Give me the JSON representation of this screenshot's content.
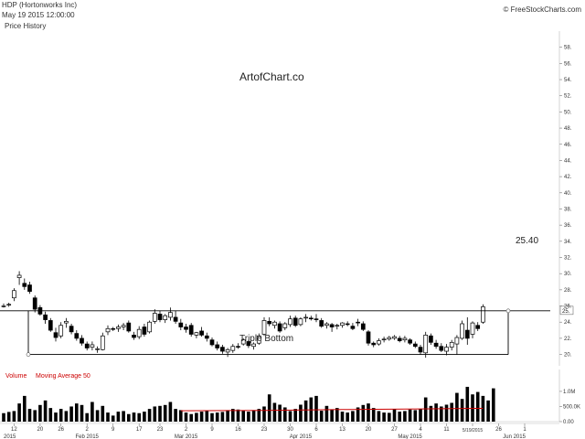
{
  "header": {
    "symbol": "HDP (Hortonworks Inc)",
    "datetime": "May 19 2015 12:00:00",
    "brand": "© FreeStockCharts.com",
    "panel_title": "Price History"
  },
  "chart_data": {
    "type": "candlestick",
    "watermark": "ArtofChart.co",
    "pattern_label": "Triple Bottom",
    "resistance_label": "25.40",
    "current_price_tag": "25.",
    "resistance": 25.4,
    "support": 20.0,
    "ylim": [
      19.5,
      60
    ],
    "y_ticks": [
      "58.",
      "56.",
      "54.",
      "52.",
      "50.",
      "48.",
      "46.",
      "44.",
      "42.",
      "40.",
      "38.",
      "36.",
      "34.",
      "32.",
      "30.",
      "28.",
      "26.",
      "24.",
      "22.",
      "20."
    ],
    "y_tick_values": [
      58,
      56,
      54,
      52,
      50,
      48,
      46,
      44,
      42,
      40,
      38,
      36,
      34,
      32,
      30,
      28,
      26,
      24,
      22,
      20
    ],
    "x_tick_labels": [
      {
        "label": "12",
        "i": 2
      },
      {
        "label": "20",
        "i": 7
      },
      {
        "label": "26",
        "i": 11
      },
      {
        "label": "2",
        "i": 16
      },
      {
        "label": "9",
        "i": 21
      },
      {
        "label": "17",
        "i": 26
      },
      {
        "label": "23",
        "i": 30
      },
      {
        "label": "2",
        "i": 35
      },
      {
        "label": "9",
        "i": 40
      },
      {
        "label": "16",
        "i": 45
      },
      {
        "label": "23",
        "i": 50
      },
      {
        "label": "30",
        "i": 55
      },
      {
        "label": "6",
        "i": 60
      },
      {
        "label": "13",
        "i": 65
      },
      {
        "label": "20",
        "i": 70
      },
      {
        "label": "27",
        "i": 75
      },
      {
        "label": "4",
        "i": 80
      },
      {
        "label": "11",
        "i": 85
      },
      {
        "label": "5/19/2015",
        "i": 90
      },
      {
        "label": "26",
        "i": 95
      },
      {
        "label": "1",
        "i": 100
      }
    ],
    "x_month_labels": [
      {
        "label": "2015",
        "i": 0
      },
      {
        "label": "Feb 2015",
        "i": 16
      },
      {
        "label": "Mar 2015",
        "i": 35
      },
      {
        "label": "Apr 2015",
        "i": 57
      },
      {
        "label": "May 2015",
        "i": 78
      },
      {
        "label": "Jun 2015",
        "i": 98
      }
    ],
    "candles": [
      {
        "o": 26.0,
        "h": 26.3,
        "l": 25.8,
        "c": 26.0
      },
      {
        "o": 26.1,
        "h": 26.4,
        "l": 25.9,
        "c": 26.2
      },
      {
        "o": 27.0,
        "h": 28.2,
        "l": 26.6,
        "c": 27.9
      },
      {
        "o": 29.5,
        "h": 30.3,
        "l": 28.6,
        "c": 29.8
      },
      {
        "o": 28.8,
        "h": 29.4,
        "l": 28.0,
        "c": 28.4
      },
      {
        "o": 28.6,
        "h": 29.0,
        "l": 27.5,
        "c": 27.8
      },
      {
        "o": 27.0,
        "h": 27.3,
        "l": 25.2,
        "c": 25.6
      },
      {
        "o": 25.8,
        "h": 26.1,
        "l": 24.8,
        "c": 25.0
      },
      {
        "o": 24.9,
        "h": 25.3,
        "l": 23.8,
        "c": 24.3
      },
      {
        "o": 24.2,
        "h": 24.5,
        "l": 22.8,
        "c": 23.0
      },
      {
        "o": 22.7,
        "h": 23.3,
        "l": 21.6,
        "c": 22.1
      },
      {
        "o": 22.3,
        "h": 24.0,
        "l": 22.0,
        "c": 23.6
      },
      {
        "o": 23.9,
        "h": 24.5,
        "l": 23.3,
        "c": 24.1
      },
      {
        "o": 23.5,
        "h": 23.8,
        "l": 22.5,
        "c": 22.8
      },
      {
        "o": 22.6,
        "h": 23.0,
        "l": 21.7,
        "c": 22.0
      },
      {
        "o": 22.0,
        "h": 22.4,
        "l": 21.1,
        "c": 21.4
      },
      {
        "o": 21.3,
        "h": 21.6,
        "l": 20.5,
        "c": 20.8
      },
      {
        "o": 20.9,
        "h": 21.6,
        "l": 20.5,
        "c": 21.2
      },
      {
        "o": 20.6,
        "h": 21.0,
        "l": 20.2,
        "c": 20.7
      },
      {
        "o": 20.6,
        "h": 22.7,
        "l": 20.5,
        "c": 22.3
      },
      {
        "o": 22.8,
        "h": 23.6,
        "l": 22.4,
        "c": 23.2
      },
      {
        "o": 23.2,
        "h": 23.4,
        "l": 22.9,
        "c": 23.1
      },
      {
        "o": 23.2,
        "h": 23.7,
        "l": 22.8,
        "c": 23.4
      },
      {
        "o": 23.4,
        "h": 23.9,
        "l": 23.0,
        "c": 23.6
      },
      {
        "o": 23.9,
        "h": 24.2,
        "l": 22.7,
        "c": 22.9
      },
      {
        "o": 22.4,
        "h": 22.8,
        "l": 21.8,
        "c": 22.1
      },
      {
        "o": 22.2,
        "h": 23.5,
        "l": 21.9,
        "c": 23.1
      },
      {
        "o": 23.4,
        "h": 23.8,
        "l": 22.2,
        "c": 22.5
      },
      {
        "o": 22.8,
        "h": 24.2,
        "l": 22.6,
        "c": 24.0
      },
      {
        "o": 24.1,
        "h": 25.6,
        "l": 23.8,
        "c": 25.1
      },
      {
        "o": 25.0,
        "h": 25.4,
        "l": 24.0,
        "c": 24.3
      },
      {
        "o": 24.3,
        "h": 25.0,
        "l": 23.9,
        "c": 24.8
      },
      {
        "o": 24.6,
        "h": 25.8,
        "l": 24.2,
        "c": 25.2
      },
      {
        "o": 24.6,
        "h": 25.4,
        "l": 23.8,
        "c": 24.1
      },
      {
        "o": 23.9,
        "h": 24.4,
        "l": 23.0,
        "c": 23.4
      },
      {
        "o": 23.4,
        "h": 23.8,
        "l": 22.7,
        "c": 23.1
      },
      {
        "o": 23.6,
        "h": 23.9,
        "l": 22.2,
        "c": 22.5
      },
      {
        "o": 22.4,
        "h": 22.8,
        "l": 22.0,
        "c": 22.7
      },
      {
        "o": 22.9,
        "h": 23.4,
        "l": 22.2,
        "c": 22.4
      },
      {
        "o": 22.3,
        "h": 22.7,
        "l": 21.6,
        "c": 22.0
      },
      {
        "o": 21.8,
        "h": 22.1,
        "l": 21.0,
        "c": 21.2
      },
      {
        "o": 21.2,
        "h": 21.6,
        "l": 20.5,
        "c": 20.8
      },
      {
        "o": 20.9,
        "h": 21.2,
        "l": 20.1,
        "c": 20.4
      },
      {
        "o": 20.3,
        "h": 20.8,
        "l": 19.7,
        "c": 20.6
      },
      {
        "o": 20.5,
        "h": 21.3,
        "l": 20.2,
        "c": 21.0
      },
      {
        "o": 21.0,
        "h": 21.4,
        "l": 20.7,
        "c": 20.9
      },
      {
        "o": 21.3,
        "h": 22.0,
        "l": 21.1,
        "c": 21.8
      },
      {
        "o": 21.6,
        "h": 21.8,
        "l": 20.8,
        "c": 21.1
      },
      {
        "o": 21.0,
        "h": 21.5,
        "l": 20.6,
        "c": 21.3
      },
      {
        "o": 21.4,
        "h": 22.6,
        "l": 21.2,
        "c": 22.3
      },
      {
        "o": 22.5,
        "h": 24.6,
        "l": 22.3,
        "c": 24.2
      },
      {
        "o": 24.1,
        "h": 24.6,
        "l": 23.5,
        "c": 23.8
      },
      {
        "o": 23.6,
        "h": 24.2,
        "l": 23.2,
        "c": 24.0
      },
      {
        "o": 23.8,
        "h": 24.1,
        "l": 22.7,
        "c": 22.9
      },
      {
        "o": 23.3,
        "h": 24.0,
        "l": 23.0,
        "c": 23.8
      },
      {
        "o": 23.7,
        "h": 24.8,
        "l": 23.4,
        "c": 24.4
      },
      {
        "o": 24.5,
        "h": 24.8,
        "l": 23.4,
        "c": 23.6
      },
      {
        "o": 23.7,
        "h": 24.6,
        "l": 23.5,
        "c": 24.4
      },
      {
        "o": 24.5,
        "h": 25.0,
        "l": 24.0,
        "c": 24.6
      },
      {
        "o": 24.5,
        "h": 24.8,
        "l": 24.2,
        "c": 24.4
      },
      {
        "o": 24.4,
        "h": 25.0,
        "l": 24.0,
        "c": 24.3
      },
      {
        "o": 24.2,
        "h": 24.5,
        "l": 23.3,
        "c": 23.5
      },
      {
        "o": 23.6,
        "h": 24.0,
        "l": 23.2,
        "c": 23.8
      },
      {
        "o": 23.7,
        "h": 23.9,
        "l": 22.8,
        "c": 23.4
      },
      {
        "o": 23.5,
        "h": 23.8,
        "l": 23.1,
        "c": 23.6
      },
      {
        "o": 23.6,
        "h": 24.0,
        "l": 23.3,
        "c": 23.9
      },
      {
        "o": 23.8,
        "h": 24.1,
        "l": 23.5,
        "c": 23.7
      },
      {
        "o": 23.5,
        "h": 23.9,
        "l": 23.0,
        "c": 23.2
      },
      {
        "o": 24.0,
        "h": 24.4,
        "l": 23.5,
        "c": 23.9
      },
      {
        "o": 23.8,
        "h": 24.1,
        "l": 22.9,
        "c": 23.1
      },
      {
        "o": 22.8,
        "h": 23.0,
        "l": 21.1,
        "c": 21.4
      },
      {
        "o": 21.4,
        "h": 21.6,
        "l": 20.9,
        "c": 21.2
      },
      {
        "o": 21.3,
        "h": 22.0,
        "l": 21.1,
        "c": 21.7
      },
      {
        "o": 21.8,
        "h": 22.2,
        "l": 21.5,
        "c": 21.9
      },
      {
        "o": 21.9,
        "h": 22.3,
        "l": 21.7,
        "c": 22.1
      },
      {
        "o": 22.0,
        "h": 22.4,
        "l": 21.8,
        "c": 22.2
      },
      {
        "o": 22.0,
        "h": 22.3,
        "l": 21.5,
        "c": 21.7
      },
      {
        "o": 21.8,
        "h": 22.3,
        "l": 21.5,
        "c": 22.0
      },
      {
        "o": 21.8,
        "h": 22.0,
        "l": 21.2,
        "c": 21.4
      },
      {
        "o": 21.3,
        "h": 21.6,
        "l": 20.8,
        "c": 21.0
      },
      {
        "o": 20.9,
        "h": 21.2,
        "l": 20.0,
        "c": 20.3
      },
      {
        "o": 20.2,
        "h": 22.8,
        "l": 19.6,
        "c": 22.4
      },
      {
        "o": 22.3,
        "h": 22.6,
        "l": 21.2,
        "c": 21.5
      },
      {
        "o": 21.4,
        "h": 21.8,
        "l": 20.7,
        "c": 21.0
      },
      {
        "o": 21.0,
        "h": 21.4,
        "l": 20.3,
        "c": 20.5
      },
      {
        "o": 20.4,
        "h": 21.3,
        "l": 19.9,
        "c": 20.9
      },
      {
        "o": 20.9,
        "h": 21.8,
        "l": 20.5,
        "c": 21.5
      },
      {
        "o": 21.3,
        "h": 22.4,
        "l": 20.0,
        "c": 22.1
      },
      {
        "o": 22.0,
        "h": 24.2,
        "l": 21.8,
        "c": 23.8
      },
      {
        "o": 23.0,
        "h": 24.6,
        "l": 21.2,
        "c": 22.0
      },
      {
        "o": 22.5,
        "h": 24.1,
        "l": 22.0,
        "c": 23.9
      },
      {
        "o": 23.6,
        "h": 24.0,
        "l": 22.9,
        "c": 23.2
      },
      {
        "o": 24.0,
        "h": 26.2,
        "l": 23.8,
        "c": 25.9
      }
    ],
    "volume": {
      "label": "Volume",
      "ma_label": "Moving Average 50",
      "ticks": [
        "1.0M",
        "500.0K",
        "0.00"
      ],
      "tick_values": [
        1000000,
        500000,
        0
      ],
      "ylim": [
        0,
        1300000
      ],
      "ma_color": "#cc0000",
      "ma": [
        {
          "i": 34,
          "v": 360000
        },
        {
          "i": 50,
          "v": 370000
        },
        {
          "i": 65,
          "v": 400000
        },
        {
          "i": 80,
          "v": 420000
        },
        {
          "i": 92,
          "v": 440000
        }
      ],
      "values": [
        280000,
        320000,
        350000,
        600000,
        850000,
        420000,
        380000,
        550000,
        700000,
        450000,
        300000,
        420000,
        350000,
        500000,
        600000,
        550000,
        280000,
        650000,
        380000,
        520000,
        300000,
        200000,
        330000,
        350000,
        250000,
        300000,
        280000,
        330000,
        420000,
        500000,
        520000,
        550000,
        650000,
        420000,
        380000,
        300000,
        250000,
        290000,
        330000,
        360000,
        280000,
        300000,
        320000,
        380000,
        420000,
        400000,
        360000,
        330000,
        380000,
        420000,
        500000,
        900000,
        620000,
        560000,
        470000,
        350000,
        420000,
        560000,
        700000,
        800000,
        850000,
        360000,
        520000,
        400000,
        450000,
        330000,
        300000,
        350000,
        470000,
        550000,
        600000,
        450000,
        350000,
        300000,
        290000,
        420000,
        330000,
        350000,
        400000,
        380000,
        420000,
        800000,
        520000,
        600000,
        500000,
        560000,
        620000,
        950000,
        750000,
        1150000,
        900000,
        980000,
        850000,
        700000,
        1100000
      ]
    }
  }
}
